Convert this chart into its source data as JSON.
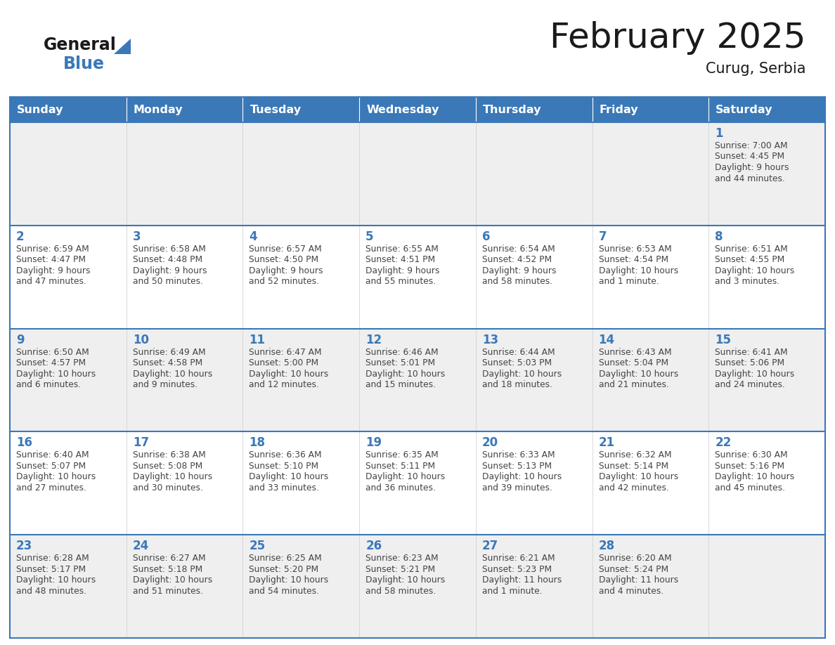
{
  "title": "February 2025",
  "subtitle": "Curug, Serbia",
  "header_bg": "#3B78B8",
  "header_text_color": "#FFFFFF",
  "days_of_week": [
    "Sunday",
    "Monday",
    "Tuesday",
    "Wednesday",
    "Thursday",
    "Friday",
    "Saturday"
  ],
  "cell_bg_even": "#EFEFEF",
  "cell_bg_odd": "#FFFFFF",
  "cell_border_color": "#3B78B8",
  "day_number_color": "#3B78B8",
  "info_text_color": "#444444",
  "title_color": "#1A1A1A",
  "subtitle_color": "#1A1A1A",
  "logo_general_color": "#1A1A1A",
  "logo_blue_color": "#3B78B8",
  "logo_triangle_color": "#3B78B8",
  "calendar_data": [
    [
      null,
      null,
      null,
      null,
      null,
      null,
      {
        "day": 1,
        "sunrise": "7:00 AM",
        "sunset": "4:45 PM",
        "daylight": "9 hours and 44 minutes."
      }
    ],
    [
      {
        "day": 2,
        "sunrise": "6:59 AM",
        "sunset": "4:47 PM",
        "daylight": "9 hours and 47 minutes."
      },
      {
        "day": 3,
        "sunrise": "6:58 AM",
        "sunset": "4:48 PM",
        "daylight": "9 hours and 50 minutes."
      },
      {
        "day": 4,
        "sunrise": "6:57 AM",
        "sunset": "4:50 PM",
        "daylight": "9 hours and 52 minutes."
      },
      {
        "day": 5,
        "sunrise": "6:55 AM",
        "sunset": "4:51 PM",
        "daylight": "9 hours and 55 minutes."
      },
      {
        "day": 6,
        "sunrise": "6:54 AM",
        "sunset": "4:52 PM",
        "daylight": "9 hours and 58 minutes."
      },
      {
        "day": 7,
        "sunrise": "6:53 AM",
        "sunset": "4:54 PM",
        "daylight": "10 hours and 1 minute."
      },
      {
        "day": 8,
        "sunrise": "6:51 AM",
        "sunset": "4:55 PM",
        "daylight": "10 hours and 3 minutes."
      }
    ],
    [
      {
        "day": 9,
        "sunrise": "6:50 AM",
        "sunset": "4:57 PM",
        "daylight": "10 hours and 6 minutes."
      },
      {
        "day": 10,
        "sunrise": "6:49 AM",
        "sunset": "4:58 PM",
        "daylight": "10 hours and 9 minutes."
      },
      {
        "day": 11,
        "sunrise": "6:47 AM",
        "sunset": "5:00 PM",
        "daylight": "10 hours and 12 minutes."
      },
      {
        "day": 12,
        "sunrise": "6:46 AM",
        "sunset": "5:01 PM",
        "daylight": "10 hours and 15 minutes."
      },
      {
        "day": 13,
        "sunrise": "6:44 AM",
        "sunset": "5:03 PM",
        "daylight": "10 hours and 18 minutes."
      },
      {
        "day": 14,
        "sunrise": "6:43 AM",
        "sunset": "5:04 PM",
        "daylight": "10 hours and 21 minutes."
      },
      {
        "day": 15,
        "sunrise": "6:41 AM",
        "sunset": "5:06 PM",
        "daylight": "10 hours and 24 minutes."
      }
    ],
    [
      {
        "day": 16,
        "sunrise": "6:40 AM",
        "sunset": "5:07 PM",
        "daylight": "10 hours and 27 minutes."
      },
      {
        "day": 17,
        "sunrise": "6:38 AM",
        "sunset": "5:08 PM",
        "daylight": "10 hours and 30 minutes."
      },
      {
        "day": 18,
        "sunrise": "6:36 AM",
        "sunset": "5:10 PM",
        "daylight": "10 hours and 33 minutes."
      },
      {
        "day": 19,
        "sunrise": "6:35 AM",
        "sunset": "5:11 PM",
        "daylight": "10 hours and 36 minutes."
      },
      {
        "day": 20,
        "sunrise": "6:33 AM",
        "sunset": "5:13 PM",
        "daylight": "10 hours and 39 minutes."
      },
      {
        "day": 21,
        "sunrise": "6:32 AM",
        "sunset": "5:14 PM",
        "daylight": "10 hours and 42 minutes."
      },
      {
        "day": 22,
        "sunrise": "6:30 AM",
        "sunset": "5:16 PM",
        "daylight": "10 hours and 45 minutes."
      }
    ],
    [
      {
        "day": 23,
        "sunrise": "6:28 AM",
        "sunset": "5:17 PM",
        "daylight": "10 hours and 48 minutes."
      },
      {
        "day": 24,
        "sunrise": "6:27 AM",
        "sunset": "5:18 PM",
        "daylight": "10 hours and 51 minutes."
      },
      {
        "day": 25,
        "sunrise": "6:25 AM",
        "sunset": "5:20 PM",
        "daylight": "10 hours and 54 minutes."
      },
      {
        "day": 26,
        "sunrise": "6:23 AM",
        "sunset": "5:21 PM",
        "daylight": "10 hours and 58 minutes."
      },
      {
        "day": 27,
        "sunrise": "6:21 AM",
        "sunset": "5:23 PM",
        "daylight": "11 hours and 1 minute."
      },
      {
        "day": 28,
        "sunrise": "6:20 AM",
        "sunset": "5:24 PM",
        "daylight": "11 hours and 4 minutes."
      },
      null
    ]
  ]
}
